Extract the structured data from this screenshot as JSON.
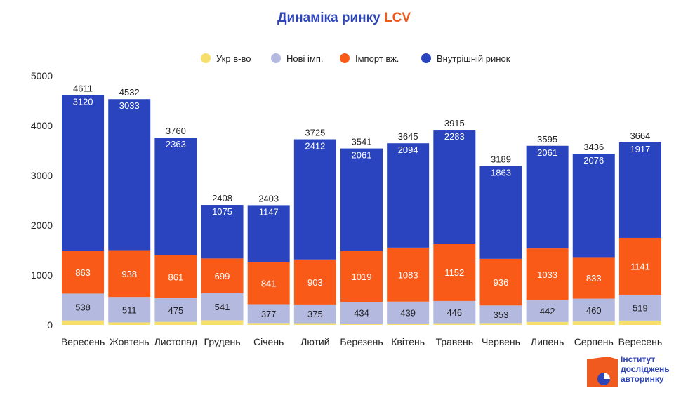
{
  "title_main": "Динаміка ринку ",
  "title_accent": "LCV",
  "logo_lines": [
    "Інститут",
    "досліджень",
    "авторинку"
  ],
  "colors": {
    "ukr": "#f7df6c",
    "new_imp": "#b3b9df",
    "import_used": "#f95a18",
    "domestic": "#2a44c0",
    "title": "#2e45b8",
    "logo_orange": "#f05a1e"
  },
  "chart_data": {
    "type": "bar",
    "stacked": true,
    "categories": [
      "Вересень",
      "Жовтень",
      "Листопад",
      "Грудень",
      "Січень",
      "Лютий",
      "Березень",
      "Квітень",
      "Травень",
      "Червень",
      "Липень",
      "Серпень",
      "Вересень"
    ],
    "series": [
      {
        "name": "Укр в-во",
        "color_key": "ukr",
        "values": [
          90,
          50,
          61,
          93,
          38,
          35,
          27,
          29,
          34,
          37,
          59,
          67,
          87
        ]
      },
      {
        "name": "Нові імп.",
        "color_key": "new_imp",
        "values": [
          538,
          511,
          475,
          541,
          377,
          375,
          434,
          439,
          446,
          353,
          442,
          460,
          519
        ]
      },
      {
        "name": "Імпорт вж.",
        "color_key": "import_used",
        "values": [
          863,
          938,
          861,
          699,
          841,
          903,
          1019,
          1083,
          1152,
          936,
          1033,
          833,
          1141
        ]
      },
      {
        "name": "Внутрішній ринок",
        "color_key": "domestic",
        "values": [
          3120,
          3033,
          2363,
          1075,
          1147,
          2412,
          2061,
          2094,
          2283,
          1863,
          2061,
          2076,
          1917
        ]
      }
    ],
    "totals": [
      4611,
      4532,
      3760,
      2408,
      2403,
      3725,
      3541,
      3645,
      3915,
      3189,
      3595,
      3436,
      3664
    ],
    "y_ticks": [
      0,
      1000,
      2000,
      3000,
      4000,
      5000
    ],
    "ylim": [
      0,
      5000
    ],
    "legend_position": "top",
    "label_series": [
      "Нові імп.",
      "Імпорт вж.",
      "Внутрішній ринок"
    ]
  }
}
